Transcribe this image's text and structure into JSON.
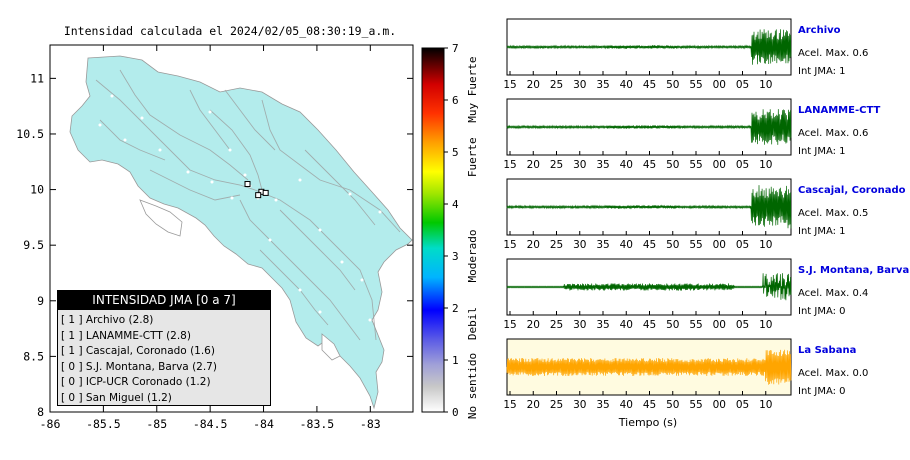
{
  "map": {
    "title": "Intensidad calculada el 2024/02/05_08:30:19_a.m.",
    "x_ticks": [
      "-86",
      "-85.5",
      "-85",
      "-84.5",
      "-84",
      "-83.5",
      "-83"
    ],
    "y_ticks": [
      "11",
      "10.5",
      "10",
      "9.5",
      "9",
      "8.5",
      "8"
    ],
    "land_color": "#b3ecec",
    "legend": {
      "title": "INTENSIDAD JMA [0 a 7]",
      "items": [
        {
          "level": "[ 1 ]",
          "label": "Archivo (2.8)"
        },
        {
          "level": "[ 1 ]",
          "label": "LANAMME-CTT (2.8)"
        },
        {
          "level": "[ 1 ]",
          "label": "Cascajal, Coronado (1.6)"
        },
        {
          "level": "[ 0 ]",
          "label": "S.J. Montana, Barva (2.7)"
        },
        {
          "level": "[ 0 ]",
          "label": "ICP-UCR Coronado (1.2)"
        },
        {
          "level": "[ 0 ]",
          "label": "San Miguel (1.2)"
        }
      ]
    }
  },
  "colorbar": {
    "ticks": [
      "7",
      "6",
      "5",
      "4",
      "3",
      "2",
      "1",
      "0"
    ],
    "labels": [
      "Muy Fuerte",
      "Fuerte",
      "Moderado",
      "Debil",
      "No sentido"
    ]
  },
  "waveforms": {
    "x_ticks": [
      "15",
      "20",
      "25",
      "30",
      "35",
      "40",
      "45",
      "50",
      "55",
      "00",
      "05",
      "10"
    ],
    "xlabel": "Tiempo (s)",
    "panels": [
      {
        "name": "Archivo",
        "accel": "Acel. Max. 0.6",
        "jma": "Int JMA: 1",
        "color": "#006600",
        "bg": "#ffffff"
      },
      {
        "name": "LANAMME-CTT",
        "accel": "Acel. Max. 0.6",
        "jma": "Int JMA: 1",
        "color": "#006600",
        "bg": "#ffffff"
      },
      {
        "name": "Cascajal, Coronado",
        "accel": "Acel. Max. 0.5",
        "jma": "Int JMA: 1",
        "color": "#006600",
        "bg": "#ffffff"
      },
      {
        "name": "S.J. Montana, Barva",
        "accel": "Acel. Max. 0.4",
        "jma": "Int JMA: 0",
        "color": "#006600",
        "bg": "#ffffff"
      },
      {
        "name": "La Sabana",
        "accel": "Acel. Max. 0.0",
        "jma": "Int JMA: 0",
        "color": "#ffa500",
        "bg": "#fffbe0"
      }
    ]
  },
  "chart_data": [
    {
      "type": "scatter",
      "title": "Intensidad calculada el 2024/02/05_08:30:19_a.m.",
      "xlim": [
        -86,
        -82.6
      ],
      "ylim": [
        8,
        11.3
      ],
      "series": [
        {
          "name": "stations",
          "x": [
            -84.15,
            -84.02,
            -83.98,
            -84.05
          ],
          "y": [
            10.05,
            9.98,
            9.97,
            9.95
          ]
        }
      ]
    },
    {
      "type": "line",
      "xlabel": "Tiempo (s)",
      "x_ticks": [
        "15",
        "20",
        "25",
        "30",
        "35",
        "40",
        "45",
        "50",
        "55",
        "00",
        "05",
        "10"
      ],
      "series": [
        {
          "name": "Archivo",
          "peak": 0.6
        },
        {
          "name": "LANAMME-CTT",
          "peak": 0.6
        },
        {
          "name": "Cascajal, Coronado",
          "peak": 0.5
        },
        {
          "name": "S.J. Montana, Barva",
          "peak": 0.4
        },
        {
          "name": "La Sabana",
          "peak": 0.0
        }
      ]
    }
  ]
}
